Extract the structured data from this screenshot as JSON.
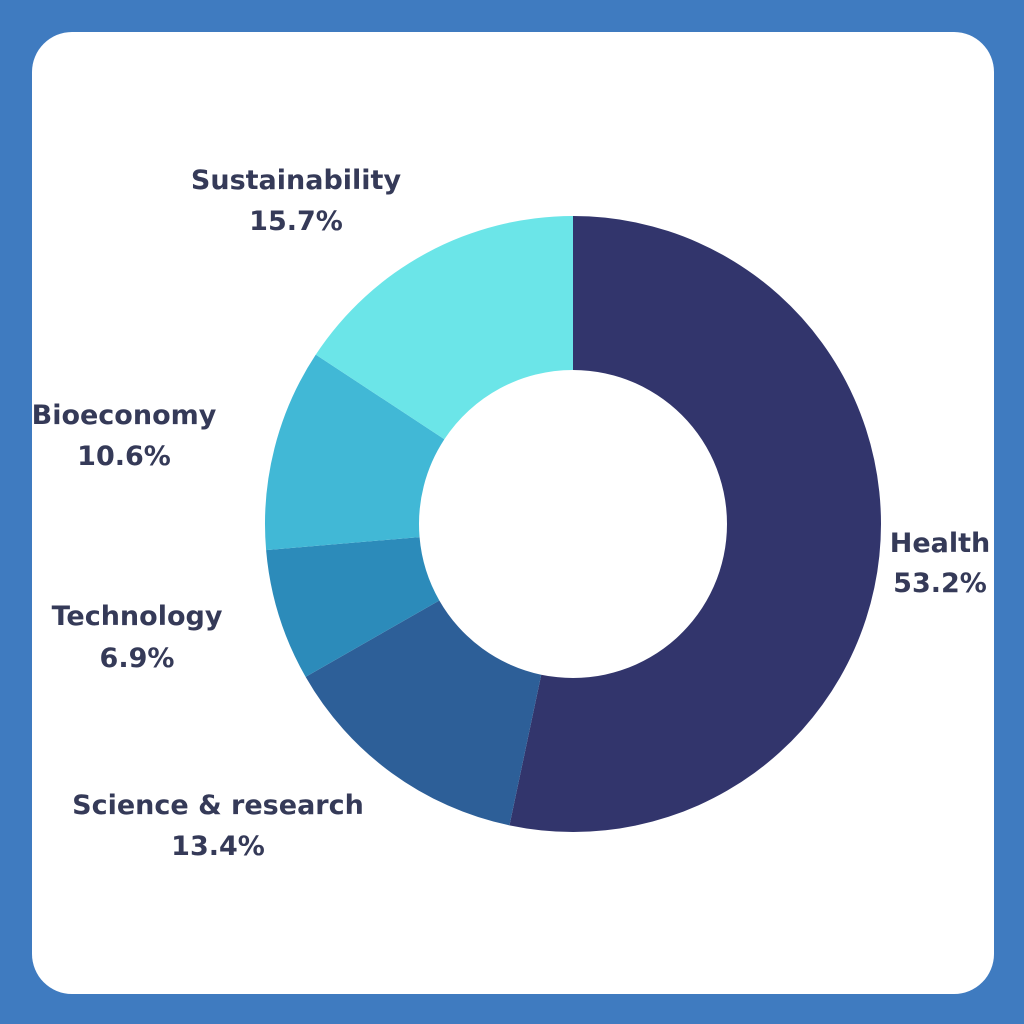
{
  "chart_data": {
    "type": "pie",
    "donut": true,
    "start_angle_deg": 0,
    "direction": "clockwise",
    "slices": [
      {
        "label": "Health",
        "value": 53.2,
        "value_label": "53.2%",
        "color": "#32356C"
      },
      {
        "label": "Science & research",
        "value": 13.4,
        "value_label": "13.4%",
        "color": "#2D5F98"
      },
      {
        "label": "Technology",
        "value": 6.9,
        "value_label": "6.9%",
        "color": "#2C8BBA"
      },
      {
        "label": "Bioeconomy",
        "value": 10.6,
        "value_label": "10.6%",
        "color": "#41B8D6"
      },
      {
        "label": "Sustainability",
        "value": 15.7,
        "value_label": "15.7%",
        "color": "#6BE5E8"
      }
    ]
  },
  "colors": {
    "frame": "#3F7BC0",
    "card": "#FFFFFF",
    "label_text": "#353A58"
  }
}
